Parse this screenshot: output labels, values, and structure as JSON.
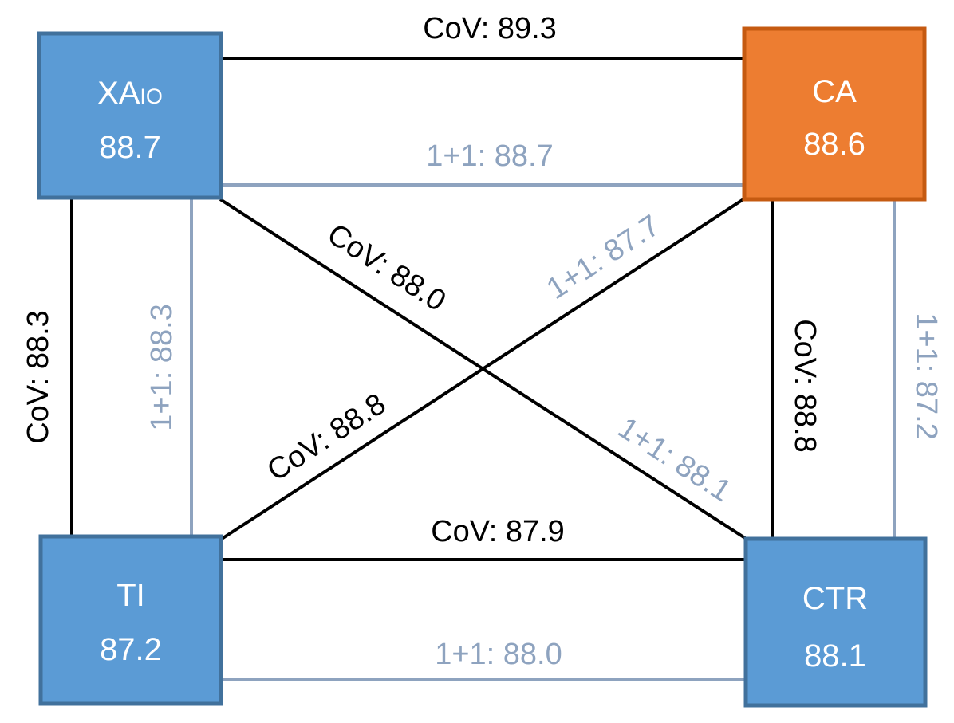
{
  "colors": {
    "node_blue_fill": "#5b9bd5",
    "node_blue_stroke": "#41719c",
    "node_orange_fill": "#ed7d31",
    "node_orange_stroke": "#c55a11",
    "cov_line": "#000000",
    "pair_line": "#8ea3bf"
  },
  "nodes": {
    "xa": {
      "name_main": "XA",
      "name_sub": "IO",
      "score": "88.7"
    },
    "ca": {
      "name": "CA",
      "score": "88.6"
    },
    "ti": {
      "name": "TI",
      "score": "87.2"
    },
    "ctr": {
      "name": "CTR",
      "score": "88.1"
    }
  },
  "edges": {
    "xa_ca": {
      "cov": "CoV:  89.3",
      "pair": "1+1: 88.7"
    },
    "ti_ctr": {
      "cov": "CoV:  87.9",
      "pair": "1+1: 88.0"
    },
    "xa_ti": {
      "cov": "CoV:  88.3",
      "pair": "1+1: 88.3"
    },
    "ca_ctr": {
      "cov": "CoV:  88.8",
      "pair": "1+1: 87.2"
    },
    "xa_ctr": {
      "cov": "CoV:  88.0",
      "pair": "1+1: 88.1"
    },
    "ca_ti": {
      "cov": "CoV:  88.8",
      "pair": "1+1: 87.7"
    }
  }
}
